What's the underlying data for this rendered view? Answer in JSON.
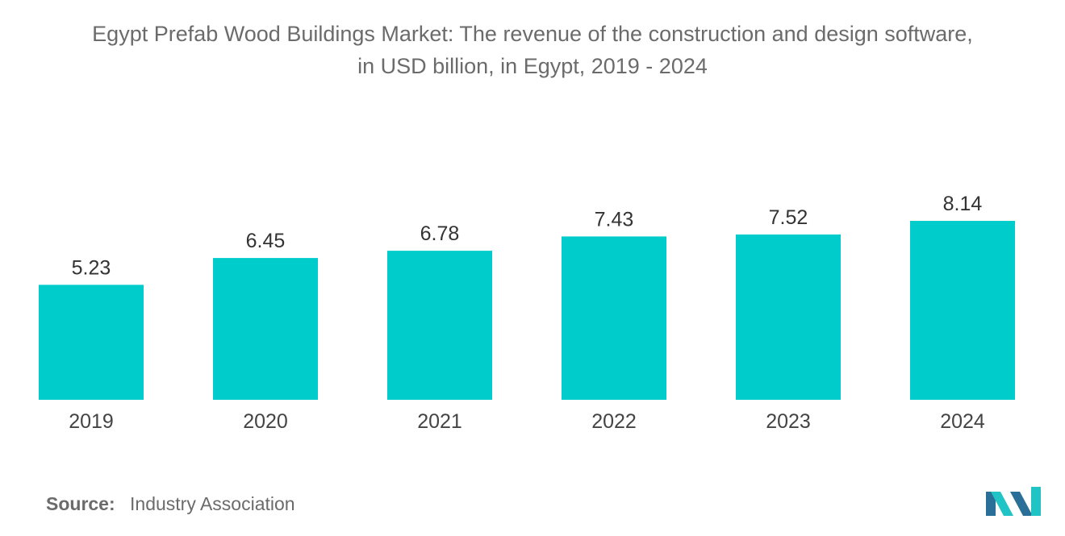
{
  "chart_data": {
    "type": "bar",
    "title_line1": "Egypt Prefab Wood Buildings Market: The revenue of the construction and design software,",
    "title_line2": "in USD billion, in Egypt, 2019 - 2024",
    "categories": [
      "2019",
      "2020",
      "2021",
      "2022",
      "2023",
      "2024"
    ],
    "values": [
      5.23,
      6.45,
      6.78,
      7.43,
      7.52,
      8.14
    ],
    "value_labels": [
      "5.23",
      "6.45",
      "6.78",
      "7.43",
      "7.52",
      "8.14"
    ],
    "xlabel": "",
    "ylabel": "",
    "ylim": [
      0,
      8.14
    ],
    "grid": false,
    "legend": "none",
    "bar_color": "#00CCCC"
  },
  "footer": {
    "source_label": "Source:",
    "source_value": "Industry Association"
  },
  "colors": {
    "text": "#6b6b6b",
    "logo_dark": "#2a6f97",
    "logo_light": "#21c4c4"
  }
}
